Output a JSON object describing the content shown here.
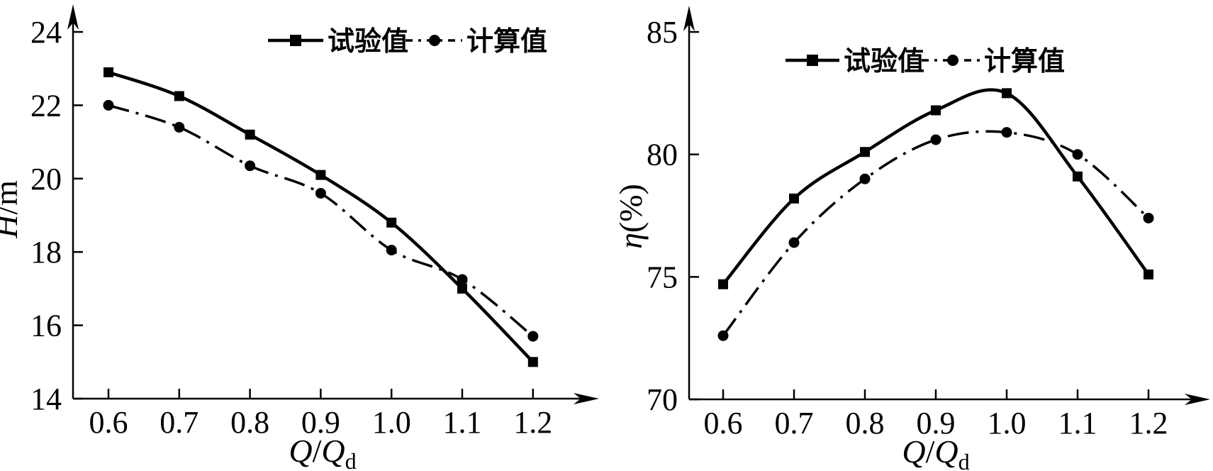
{
  "figure": {
    "background": "#ffffff",
    "ink_color": "#000000",
    "title": ""
  },
  "chart_data": [
    {
      "type": "line",
      "title": "",
      "xlabel_parts": [
        {
          "t": "Q",
          "i": true
        },
        {
          "t": "/"
        },
        {
          "t": "Q",
          "i": true
        },
        {
          "t": "d",
          "sub": true
        }
      ],
      "ylabel_parts": [
        {
          "t": "H",
          "i": true
        },
        {
          "t": "/m"
        }
      ],
      "xlabel": "Q/Q_d",
      "ylabel": "H/m",
      "x": [
        0.6,
        0.7,
        0.8,
        0.9,
        1.0,
        1.1,
        1.2
      ],
      "x_tick_labels": [
        "0.6",
        "0.7",
        "0.8",
        "0.9",
        "1.0",
        "1.1",
        "1.2"
      ],
      "y_ticks": [
        14,
        16,
        18,
        20,
        22,
        24
      ],
      "ylim": [
        14,
        24.8
      ],
      "xlim": [
        0.55,
        1.29
      ],
      "grid": false,
      "legend_position": "top-center-inside",
      "series": [
        {
          "name": "试验值",
          "marker": "square",
          "line_style": "solid",
          "values": [
            22.9,
            22.25,
            21.2,
            20.1,
            18.8,
            17.0,
            15.0
          ]
        },
        {
          "name": "计算值",
          "marker": "circle",
          "line_style": "dashdot",
          "values": [
            22.0,
            21.4,
            20.35,
            19.6,
            18.05,
            17.25,
            15.7
          ]
        }
      ]
    },
    {
      "type": "line",
      "title": "",
      "xlabel_parts": [
        {
          "t": "Q",
          "i": true
        },
        {
          "t": "/"
        },
        {
          "t": "Q",
          "i": true
        },
        {
          "t": "d",
          "sub": true
        }
      ],
      "ylabel_parts": [
        {
          "t": "η",
          "i": true
        },
        {
          "t": "(%)"
        }
      ],
      "xlabel": "Q/Q_d",
      "ylabel": "η(%)",
      "x": [
        0.6,
        0.7,
        0.8,
        0.9,
        1.0,
        1.1,
        1.2
      ],
      "x_tick_labels": [
        "0.6",
        "0.7",
        "0.8",
        "0.9",
        "1.0",
        "1.1",
        "1.2"
      ],
      "y_ticks": [
        70,
        75,
        80,
        85
      ],
      "ylim": [
        70,
        86.2
      ],
      "xlim": [
        0.55,
        1.29
      ],
      "grid": false,
      "legend_position": "top-center-inside",
      "series": [
        {
          "name": "试验值",
          "marker": "square",
          "line_style": "solid",
          "values": [
            74.7,
            78.2,
            80.1,
            81.8,
            82.5,
            79.1,
            75.1
          ]
        },
        {
          "name": "计算值",
          "marker": "circle",
          "line_style": "dashdot",
          "values": [
            72.6,
            76.4,
            79.0,
            80.6,
            80.9,
            80.0,
            77.4
          ]
        }
      ]
    }
  ]
}
